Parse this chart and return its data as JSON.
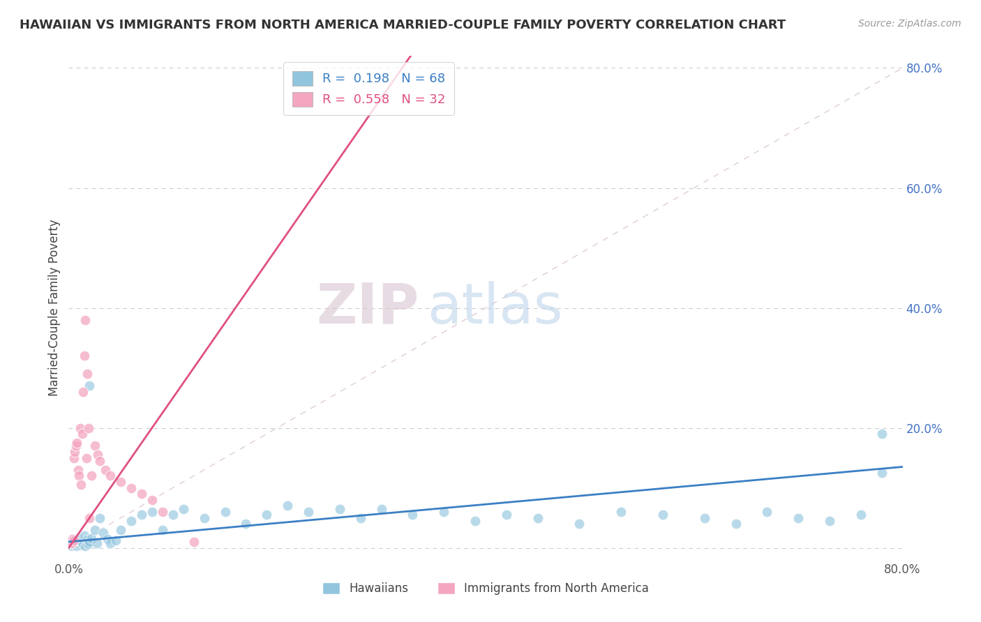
{
  "title": "HAWAIIAN VS IMMIGRANTS FROM NORTH AMERICA MARRIED-COUPLE FAMILY POVERTY CORRELATION CHART",
  "source": "Source: ZipAtlas.com",
  "ylabel": "Married-Couple Family Poverty",
  "xlim": [
    0.0,
    0.8
  ],
  "ylim": [
    -0.02,
    0.82
  ],
  "hawaiian_R": 0.198,
  "hawaiian_N": 68,
  "immigrant_R": 0.558,
  "immigrant_N": 32,
  "hawaiian_color": "#92c5de",
  "immigrant_color": "#f4a6c0",
  "hawaiian_line_color": "#3b7fc4",
  "immigrant_line_color": "#e05080",
  "watermark_zip": "ZIP",
  "watermark_atlas": "atlas",
  "background_color": "#ffffff",
  "grid_color": "#cccccc",
  "hawaiian_x": [
    0.001,
    0.002,
    0.003,
    0.003,
    0.004,
    0.004,
    0.005,
    0.005,
    0.006,
    0.006,
    0.007,
    0.007,
    0.008,
    0.008,
    0.009,
    0.01,
    0.01,
    0.011,
    0.012,
    0.013,
    0.014,
    0.015,
    0.016,
    0.017,
    0.018,
    0.019,
    0.02,
    0.022,
    0.025,
    0.027,
    0.03,
    0.033,
    0.037,
    0.04,
    0.045,
    0.05,
    0.06,
    0.07,
    0.08,
    0.09,
    0.1,
    0.11,
    0.13,
    0.15,
    0.17,
    0.19,
    0.21,
    0.23,
    0.26,
    0.28,
    0.3,
    0.33,
    0.36,
    0.39,
    0.42,
    0.45,
    0.49,
    0.53,
    0.57,
    0.61,
    0.64,
    0.67,
    0.7,
    0.73,
    0.76,
    0.78,
    0.78,
    0.02
  ],
  "hawaiian_y": [
    0.005,
    0.008,
    0.003,
    0.01,
    0.006,
    0.012,
    0.004,
    0.015,
    0.007,
    0.009,
    0.005,
    0.011,
    0.003,
    0.008,
    0.016,
    0.006,
    0.012,
    0.004,
    0.009,
    0.005,
    0.007,
    0.02,
    0.003,
    0.008,
    0.014,
    0.006,
    0.01,
    0.016,
    0.03,
    0.008,
    0.05,
    0.025,
    0.015,
    0.008,
    0.012,
    0.03,
    0.045,
    0.055,
    0.06,
    0.03,
    0.055,
    0.065,
    0.05,
    0.06,
    0.04,
    0.055,
    0.07,
    0.06,
    0.065,
    0.05,
    0.065,
    0.055,
    0.06,
    0.045,
    0.055,
    0.05,
    0.04,
    0.06,
    0.055,
    0.05,
    0.04,
    0.06,
    0.05,
    0.045,
    0.055,
    0.19,
    0.125,
    0.27
  ],
  "immigrant_x": [
    0.002,
    0.003,
    0.004,
    0.005,
    0.005,
    0.006,
    0.007,
    0.008,
    0.009,
    0.01,
    0.011,
    0.012,
    0.013,
    0.014,
    0.015,
    0.016,
    0.017,
    0.018,
    0.019,
    0.02,
    0.022,
    0.025,
    0.028,
    0.03,
    0.035,
    0.04,
    0.05,
    0.06,
    0.07,
    0.08,
    0.09,
    0.12
  ],
  "immigrant_y": [
    0.01,
    0.008,
    0.015,
    0.012,
    0.15,
    0.16,
    0.17,
    0.175,
    0.13,
    0.12,
    0.2,
    0.105,
    0.19,
    0.26,
    0.32,
    0.38,
    0.15,
    0.29,
    0.2,
    0.05,
    0.12,
    0.17,
    0.155,
    0.145,
    0.13,
    0.12,
    0.11,
    0.1,
    0.09,
    0.08,
    0.06,
    0.01
  ],
  "legend_label_1": "Hawaiians",
  "legend_label_2": "Immigrants from North America",
  "pink_line_x0": 0.0,
  "pink_line_y0": 0.0,
  "pink_line_x1": 0.2,
  "pink_line_y1": 0.5,
  "blue_line_x0": 0.0,
  "blue_line_y0": 0.01,
  "blue_line_x1": 0.8,
  "blue_line_y1": 0.135
}
